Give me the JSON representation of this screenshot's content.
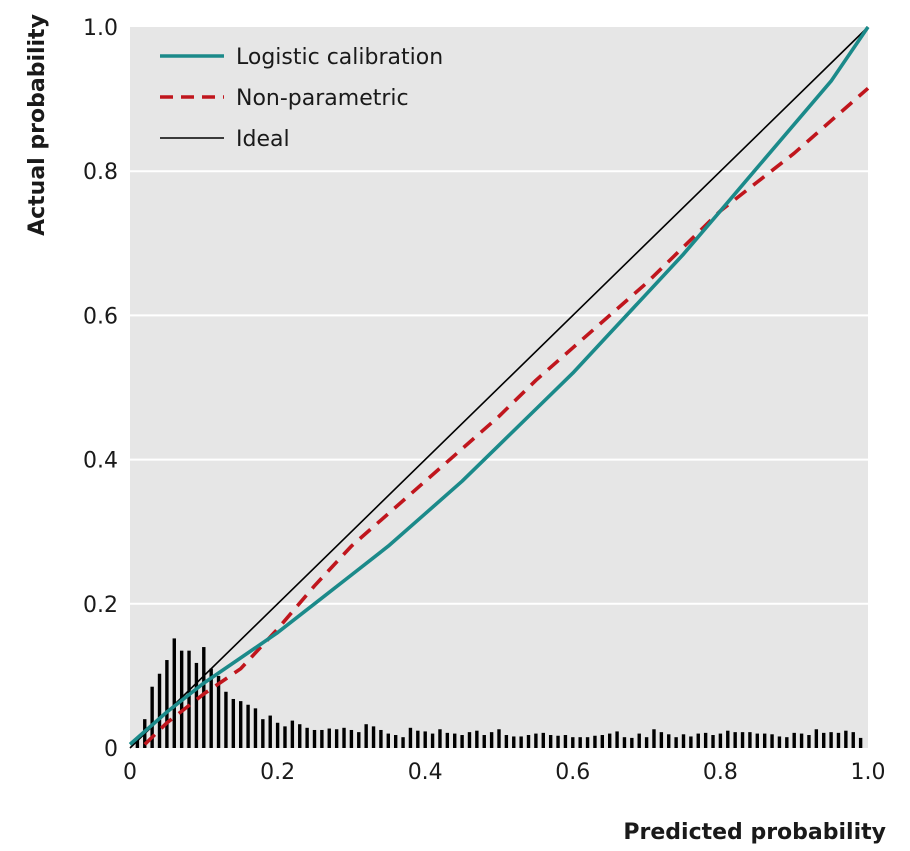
{
  "chart_data": {
    "type": "line",
    "xlabel": "Predicted probability",
    "ylabel": "Actual probability",
    "xlim": [
      0,
      1
    ],
    "ylim": [
      0,
      1
    ],
    "x_ticks": [
      "0",
      "0.2",
      "0.4",
      "0.6",
      "0.8",
      "1.0"
    ],
    "y_ticks": [
      "0",
      "0.2",
      "0.4",
      "0.6",
      "0.8",
      "1.0"
    ],
    "grid": "horizontal",
    "legend_position": "top-left",
    "background_color": "#e6e6e6",
    "series": [
      {
        "name": "Logistic calibration",
        "style": "solid",
        "color": "#1b8a8a",
        "x": [
          0,
          0.05,
          0.1,
          0.15,
          0.2,
          0.25,
          0.3,
          0.35,
          0.4,
          0.45,
          0.5,
          0.55,
          0.6,
          0.65,
          0.7,
          0.75,
          0.8,
          0.85,
          0.9,
          0.95,
          1.0
        ],
        "y": [
          0.005,
          0.05,
          0.09,
          0.125,
          0.16,
          0.2,
          0.24,
          0.28,
          0.325,
          0.37,
          0.42,
          0.47,
          0.52,
          0.575,
          0.63,
          0.685,
          0.745,
          0.805,
          0.865,
          0.925,
          1.0
        ]
      },
      {
        "name": "Non-parametric",
        "style": "dashed",
        "color": "#c0161d",
        "x": [
          0.02,
          0.05,
          0.1,
          0.15,
          0.2,
          0.25,
          0.3,
          0.35,
          0.4,
          0.45,
          0.5,
          0.55,
          0.6,
          0.65,
          0.7,
          0.75,
          0.8,
          0.85,
          0.9,
          0.95,
          1.0
        ],
        "y": [
          0.005,
          0.035,
          0.075,
          0.11,
          0.165,
          0.225,
          0.28,
          0.325,
          0.37,
          0.415,
          0.46,
          0.51,
          0.555,
          0.6,
          0.645,
          0.695,
          0.745,
          0.785,
          0.825,
          0.87,
          0.915
        ]
      },
      {
        "name": "Ideal",
        "style": "solid-thin",
        "color": "#000000",
        "x": [
          0,
          1
        ],
        "y": [
          0,
          1
        ]
      }
    ],
    "histogram": {
      "color": "#000000",
      "x": [
        0.01,
        0.02,
        0.03,
        0.04,
        0.05,
        0.06,
        0.07,
        0.08,
        0.09,
        0.1,
        0.11,
        0.12,
        0.13,
        0.14,
        0.15,
        0.16,
        0.17,
        0.18,
        0.19,
        0.2,
        0.21,
        0.22,
        0.23,
        0.24,
        0.25,
        0.26,
        0.27,
        0.28,
        0.29,
        0.3,
        0.31,
        0.32,
        0.33,
        0.34,
        0.35,
        0.36,
        0.37,
        0.38,
        0.39,
        0.4,
        0.41,
        0.42,
        0.43,
        0.44,
        0.45,
        0.46,
        0.47,
        0.48,
        0.49,
        0.5,
        0.51,
        0.52,
        0.53,
        0.54,
        0.55,
        0.56,
        0.57,
        0.58,
        0.59,
        0.6,
        0.61,
        0.62,
        0.63,
        0.64,
        0.65,
        0.66,
        0.67,
        0.68,
        0.69,
        0.7,
        0.71,
        0.72,
        0.73,
        0.74,
        0.75,
        0.76,
        0.77,
        0.78,
        0.79,
        0.8,
        0.81,
        0.82,
        0.83,
        0.84,
        0.85,
        0.86,
        0.87,
        0.88,
        0.89,
        0.9,
        0.91,
        0.92,
        0.93,
        0.94,
        0.95,
        0.96,
        0.97,
        0.98,
        0.99
      ],
      "heights": [
        0.012,
        0.04,
        0.085,
        0.103,
        0.122,
        0.152,
        0.135,
        0.135,
        0.118,
        0.14,
        0.11,
        0.1,
        0.078,
        0.068,
        0.065,
        0.06,
        0.055,
        0.04,
        0.045,
        0.035,
        0.03,
        0.038,
        0.033,
        0.028,
        0.025,
        0.025,
        0.027,
        0.026,
        0.028,
        0.025,
        0.022,
        0.033,
        0.03,
        0.025,
        0.02,
        0.018,
        0.015,
        0.028,
        0.024,
        0.023,
        0.02,
        0.026,
        0.021,
        0.02,
        0.018,
        0.022,
        0.024,
        0.018,
        0.022,
        0.026,
        0.018,
        0.016,
        0.016,
        0.018,
        0.02,
        0.021,
        0.018,
        0.017,
        0.018,
        0.015,
        0.015,
        0.015,
        0.017,
        0.018,
        0.02,
        0.023,
        0.015,
        0.014,
        0.02,
        0.015,
        0.026,
        0.022,
        0.019,
        0.015,
        0.019,
        0.016,
        0.02,
        0.021,
        0.018,
        0.02,
        0.024,
        0.022,
        0.022,
        0.022,
        0.02,
        0.02,
        0.019,
        0.016,
        0.015,
        0.021,
        0.02,
        0.018,
        0.026,
        0.021,
        0.022,
        0.021,
        0.024,
        0.022,
        0.014
      ]
    }
  }
}
